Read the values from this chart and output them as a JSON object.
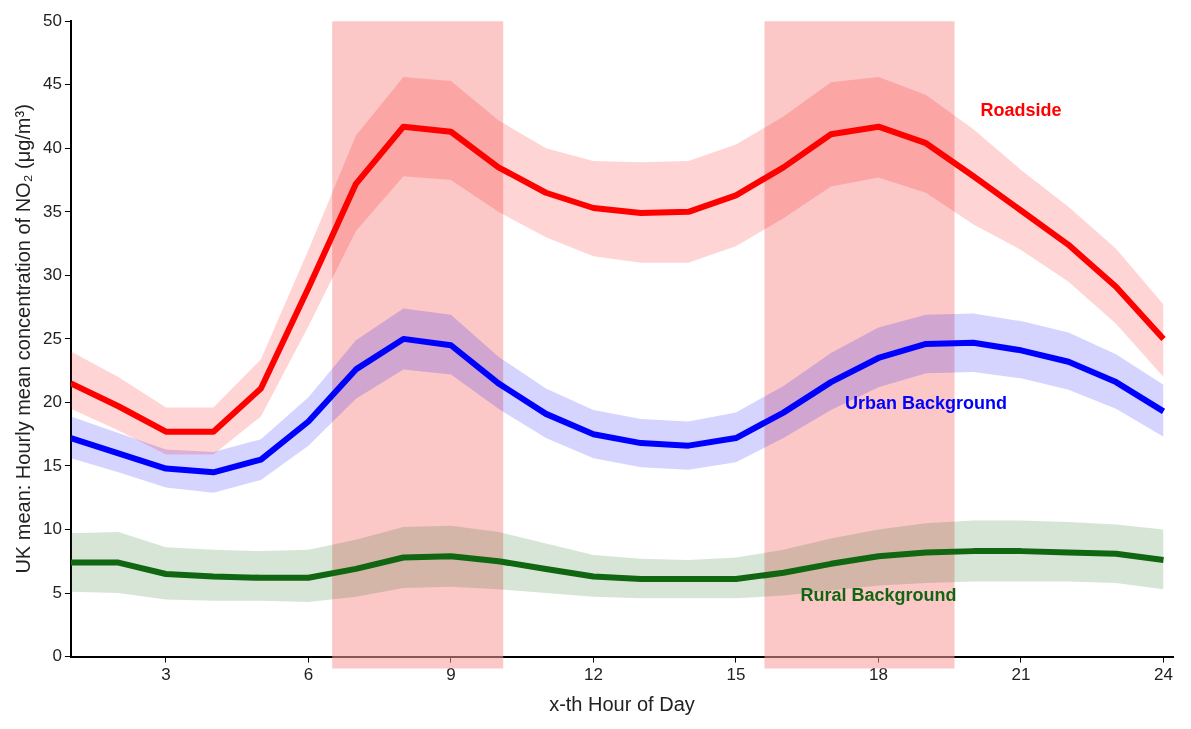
{
  "chart_data": {
    "type": "line",
    "xlabel": "x-th Hour of Day",
    "ylabel": "UK mean: Hourly mean concentration of NO₂ (μg/m³)",
    "x": [
      1,
      2,
      3,
      4,
      5,
      6,
      7,
      8,
      9,
      10,
      11,
      12,
      13,
      14,
      15,
      16,
      17,
      18,
      19,
      20,
      21,
      22,
      23,
      24
    ],
    "series": [
      {
        "name": "Roadside",
        "color": "#ff0000",
        "values": [
          21.5,
          19.7,
          17.7,
          17.7,
          21.1,
          29,
          37.2,
          41.7,
          41.3,
          38.5,
          36.5,
          35.3,
          34.9,
          35.0,
          36.3,
          38.5,
          41.1,
          41.7,
          40.4,
          37.8,
          35.1,
          32.4,
          29.1,
          25.0
        ],
        "lower": [
          19.5,
          17.8,
          15.9,
          15.9,
          18.9,
          26,
          33.5,
          37.8,
          37.5,
          35,
          33,
          31.5,
          31,
          31,
          32.3,
          34.5,
          37,
          37.7,
          36.5,
          34,
          32,
          29.5,
          26.2,
          22
        ],
        "upper": [
          24,
          22,
          19.6,
          19.6,
          23.4,
          32,
          41,
          45.6,
          45.3,
          42.2,
          40,
          39,
          38.9,
          39,
          40.3,
          42.5,
          45.2,
          45.6,
          44.2,
          41.5,
          38.3,
          35.4,
          32.1,
          27.7
        ]
      },
      {
        "name": "Urban Background",
        "color": "#0000ff",
        "values": [
          17.2,
          16,
          14.8,
          14.5,
          15.5,
          18.5,
          22.6,
          25.0,
          24.5,
          21.5,
          19.1,
          17.5,
          16.8,
          16.6,
          17.2,
          19.2,
          21.6,
          23.5,
          24.6,
          24.7,
          24.1,
          23.2,
          21.6,
          19.3
        ],
        "lower": [
          15.6,
          14.5,
          13.3,
          12.9,
          13.9,
          16.6,
          20.3,
          22.6,
          22.2,
          19.5,
          17.2,
          15.6,
          14.9,
          14.7,
          15.3,
          17.2,
          19.4,
          21.2,
          22.3,
          22.4,
          21.9,
          21.0,
          19.5,
          17.3
        ],
        "upper": [
          18.9,
          17.6,
          16.3,
          16.1,
          17.1,
          20.4,
          24.9,
          27.4,
          26.9,
          23.6,
          21.1,
          19.4,
          18.7,
          18.5,
          19.2,
          21.3,
          23.9,
          25.9,
          26.9,
          27.0,
          26.4,
          25.5,
          23.8,
          21.4
        ]
      },
      {
        "name": "Rural Background",
        "color": "#116611",
        "values": [
          7.4,
          7.4,
          6.5,
          6.3,
          6.2,
          6.2,
          6.9,
          7.8,
          7.9,
          7.5,
          6.9,
          6.3,
          6.1,
          6.1,
          6.1,
          6.6,
          7.3,
          7.9,
          8.2,
          8.3,
          8.3,
          8.2,
          8.1,
          7.6
        ],
        "lower": [
          5.1,
          5.0,
          4.5,
          4.4,
          4.4,
          4.3,
          4.7,
          5.4,
          5.5,
          5.3,
          5.0,
          4.7,
          4.6,
          4.6,
          4.6,
          4.8,
          5.2,
          5.6,
          5.8,
          5.9,
          5.9,
          5.9,
          5.8,
          5.3
        ],
        "upper": [
          9.7,
          9.8,
          8.6,
          8.4,
          8.3,
          8.4,
          9.2,
          10.2,
          10.3,
          9.8,
          8.9,
          8.0,
          7.7,
          7.6,
          7.8,
          8.4,
          9.3,
          10.0,
          10.5,
          10.7,
          10.7,
          10.6,
          10.4,
          10.0
        ]
      }
    ],
    "bands": [
      {
        "axis": "x",
        "from": 6.5,
        "to": 10.1,
        "color": "#f79999"
      },
      {
        "axis": "x",
        "from": 15.6,
        "to": 19.6,
        "color": "#f79999"
      }
    ],
    "xlim": [
      1,
      24.2
    ],
    "xticks": [
      3,
      6,
      9,
      12,
      15,
      18,
      21,
      24
    ],
    "ylim": [
      0,
      50
    ],
    "yticks": [
      0,
      5,
      10,
      15,
      20,
      25,
      30,
      35,
      40,
      45,
      50
    ],
    "grid": false,
    "legend": false,
    "marker": "none",
    "line_style": "solid"
  }
}
